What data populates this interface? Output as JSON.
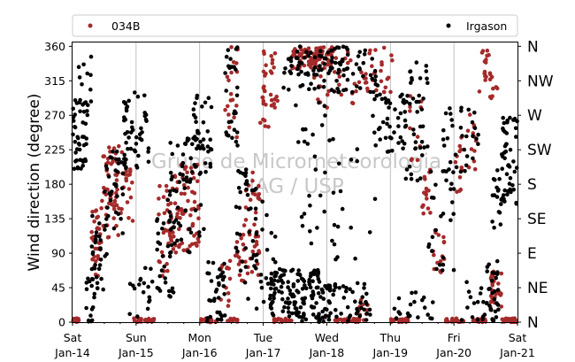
{
  "chart_data": {
    "type": "scatter",
    "ylabel": "Wind direction (degree)",
    "ylim": [
      0,
      365
    ],
    "xlim": [
      "2017-01-14",
      "2017-01-21"
    ],
    "grid": "vertical",
    "legend_placement": "top",
    "watermark": [
      "Grupo de Micrometeorologia",
      "IAG / USP"
    ],
    "y_ticks": [
      0,
      45,
      90,
      135,
      180,
      225,
      270,
      315,
      360
    ],
    "compass_ticks": [
      {
        "value": 0,
        "label": "N"
      },
      {
        "value": 45,
        "label": "NE"
      },
      {
        "value": 90,
        "label": "E"
      },
      {
        "value": 135,
        "label": "SE"
      },
      {
        "value": 180,
        "label": "S"
      },
      {
        "value": 225,
        "label": "SW"
      },
      {
        "value": 270,
        "label": "W"
      },
      {
        "value": 315,
        "label": "NW"
      },
      {
        "value": 360,
        "label": "N"
      }
    ],
    "x_ticks": [
      {
        "day": 0,
        "line1": "Sat",
        "line2": "Jan-14"
      },
      {
        "day": 1,
        "line1": "Sun",
        "line2": "Jan-15"
      },
      {
        "day": 2,
        "line1": "Mon",
        "line2": "Jan-16"
      },
      {
        "day": 3,
        "line1": "Tue",
        "line2": "Jan-17"
      },
      {
        "day": 4,
        "line1": "Wed",
        "line2": "Jan-18"
      },
      {
        "day": 5,
        "line1": "Thu",
        "line2": "Jan-19"
      },
      {
        "day": 6,
        "line1": "Fri",
        "line2": "Jan-20"
      },
      {
        "day": 7,
        "line1": "Sat",
        "line2": "Jan-21"
      }
    ],
    "series": [
      {
        "name": "034B",
        "color": "#a52a2a",
        "clusters": [
          {
            "x": [
              0.0,
              0.1
            ],
            "y": [
              0,
              5
            ],
            "n": 25
          },
          {
            "x": [
              0.3,
              0.45
            ],
            "y": [
              60,
              150
            ],
            "n": 28
          },
          {
            "x": [
              0.45,
              0.8
            ],
            "y": [
              110,
              230
            ],
            "n": 55
          },
          {
            "x": [
              0.8,
              0.95
            ],
            "y": [
              130,
              200
            ],
            "n": 15
          },
          {
            "x": [
              0.95,
              1.35
            ],
            "y": [
              0,
              5
            ],
            "n": 25
          },
          {
            "x": [
              1.35,
              1.55
            ],
            "y": [
              60,
              180
            ],
            "n": 30
          },
          {
            "x": [
              1.55,
              2.0
            ],
            "y": [
              90,
              210
            ],
            "n": 70
          },
          {
            "x": [
              2.0,
              2.3
            ],
            "y": [
              0,
              5
            ],
            "n": 18
          },
          {
            "x": [
              2.3,
              2.5
            ],
            "y": [
              20,
              80
            ],
            "n": 14
          },
          {
            "x": [
              2.4,
              2.6
            ],
            "y": [
              240,
              360
            ],
            "n": 18
          },
          {
            "x": [
              2.4,
              2.6
            ],
            "y": [
              0,
              5
            ],
            "n": 10
          },
          {
            "x": [
              2.55,
              2.7
            ],
            "y": [
              50,
              120
            ],
            "n": 15
          },
          {
            "x": [
              2.7,
              2.95
            ],
            "y": [
              60,
              200
            ],
            "n": 35
          },
          {
            "x": [
              2.95,
              3.1
            ],
            "y": [
              240,
              330
            ],
            "n": 10
          },
          {
            "x": [
              3.0,
              3.25
            ],
            "y": [
              280,
              360
            ],
            "n": 25
          },
          {
            "x": [
              3.15,
              3.45
            ],
            "y": [
              0,
              5
            ],
            "n": 20
          },
          {
            "x": [
              3.45,
              4.1
            ],
            "y": [
              330,
              360
            ],
            "n": 90
          },
          {
            "x": [
              3.8,
              4.7
            ],
            "y": [
              280,
              355
            ],
            "n": 40
          },
          {
            "x": [
              4.1,
              4.5
            ],
            "y": [
              0,
              5
            ],
            "n": 25
          },
          {
            "x": [
              4.5,
              4.65
            ],
            "y": [
              0,
              30
            ],
            "n": 12
          },
          {
            "x": [
              4.65,
              5.05
            ],
            "y": [
              300,
              360
            ],
            "n": 20
          },
          {
            "x": [
              5.0,
              5.3
            ],
            "y": [
              0,
              5
            ],
            "n": 20
          },
          {
            "x": [
              5.3,
              5.5
            ],
            "y": [
              210,
              300
            ],
            "n": 12
          },
          {
            "x": [
              5.5,
              5.65
            ],
            "y": [
              140,
              200
            ],
            "n": 15
          },
          {
            "x": [
              5.65,
              5.85
            ],
            "y": [
              60,
              120
            ],
            "n": 15
          },
          {
            "x": [
              5.85,
              6.15
            ],
            "y": [
              0,
              5
            ],
            "n": 20
          },
          {
            "x": [
              5.95,
              6.15
            ],
            "y": [
              170,
              250
            ],
            "n": 12
          },
          {
            "x": [
              6.2,
              6.35
            ],
            "y": [
              180,
              280
            ],
            "n": 12
          },
          {
            "x": [
              6.3,
              6.5
            ],
            "y": [
              0,
              5
            ],
            "n": 15
          },
          {
            "x": [
              6.4,
              6.55
            ],
            "y": [
              300,
              360
            ],
            "n": 15
          },
          {
            "x": [
              6.55,
              6.75
            ],
            "y": [
              20,
              70
            ],
            "n": 30
          },
          {
            "x": [
              6.55,
              6.7
            ],
            "y": [
              290,
              330
            ],
            "n": 10
          },
          {
            "x": [
              6.75,
              7.0
            ],
            "y": [
              0,
              5
            ],
            "n": 20
          }
        ]
      },
      {
        "name": "Irgason",
        "color": "#000000",
        "clusters": [
          {
            "x": [
              0.0,
              0.25
            ],
            "y": [
              200,
              290
            ],
            "n": 45
          },
          {
            "x": [
              0.05,
              0.3
            ],
            "y": [
              280,
              360
            ],
            "n": 10
          },
          {
            "x": [
              0.2,
              0.35
            ],
            "y": [
              0,
              60
            ],
            "n": 15
          },
          {
            "x": [
              0.3,
              0.55
            ],
            "y": [
              40,
              140
            ],
            "n": 30
          },
          {
            "x": [
              0.5,
              0.85
            ],
            "y": [
              110,
              230
            ],
            "n": 40
          },
          {
            "x": [
              0.8,
              1.2
            ],
            "y": [
              200,
              300
            ],
            "n": 45
          },
          {
            "x": [
              0.9,
              1.3
            ],
            "y": [
              0,
              80
            ],
            "n": 18
          },
          {
            "x": [
              1.3,
              1.6
            ],
            "y": [
              30,
              150
            ],
            "n": 30
          },
          {
            "x": [
              1.5,
              2.1
            ],
            "y": [
              90,
              240
            ],
            "n": 65
          },
          {
            "x": [
              1.9,
              2.2
            ],
            "y": [
              190,
              300
            ],
            "n": 30
          },
          {
            "x": [
              2.1,
              2.4
            ],
            "y": [
              0,
              80
            ],
            "n": 35
          },
          {
            "x": [
              2.4,
              2.6
            ],
            "y": [
              230,
              360
            ],
            "n": 28
          },
          {
            "x": [
              2.55,
              2.9
            ],
            "y": [
              30,
              200
            ],
            "n": 40
          },
          {
            "x": [
              2.85,
              3.2
            ],
            "y": [
              0,
              200
            ],
            "n": 25
          },
          {
            "x": [
              3.1,
              3.9
            ],
            "y": [
              0,
              70
            ],
            "n": 130
          },
          {
            "x": [
              3.3,
              4.8
            ],
            "y": [
              300,
              360
            ],
            "n": 110
          },
          {
            "x": [
              3.5,
              4.0
            ],
            "y": [
              100,
              300
            ],
            "n": 25
          },
          {
            "x": [
              3.9,
              4.7
            ],
            "y": [
              0,
              50
            ],
            "n": 60
          },
          {
            "x": [
              4.0,
              4.8
            ],
            "y": [
              50,
              250
            ],
            "n": 20
          },
          {
            "x": [
              4.7,
              5.4
            ],
            "y": [
              220,
              300
            ],
            "n": 45
          },
          {
            "x": [
              5.2,
              5.6
            ],
            "y": [
              180,
              340
            ],
            "n": 40
          },
          {
            "x": [
              5.0,
              5.7
            ],
            "y": [
              0,
              40
            ],
            "n": 20
          },
          {
            "x": [
              5.6,
              6.0
            ],
            "y": [
              60,
              200
            ],
            "n": 25
          },
          {
            "x": [
              5.8,
              6.4
            ],
            "y": [
              180,
              280
            ],
            "n": 35
          },
          {
            "x": [
              6.1,
              6.5
            ],
            "y": [
              0,
              60
            ],
            "n": 15
          },
          {
            "x": [
              6.5,
              6.7
            ],
            "y": [
              0,
              80
            ],
            "n": 30
          },
          {
            "x": [
              6.6,
              6.8
            ],
            "y": [
              100,
              200
            ],
            "n": 20
          },
          {
            "x": [
              6.75,
              7.0
            ],
            "y": [
              150,
              270
            ],
            "n": 45
          }
        ]
      }
    ]
  }
}
